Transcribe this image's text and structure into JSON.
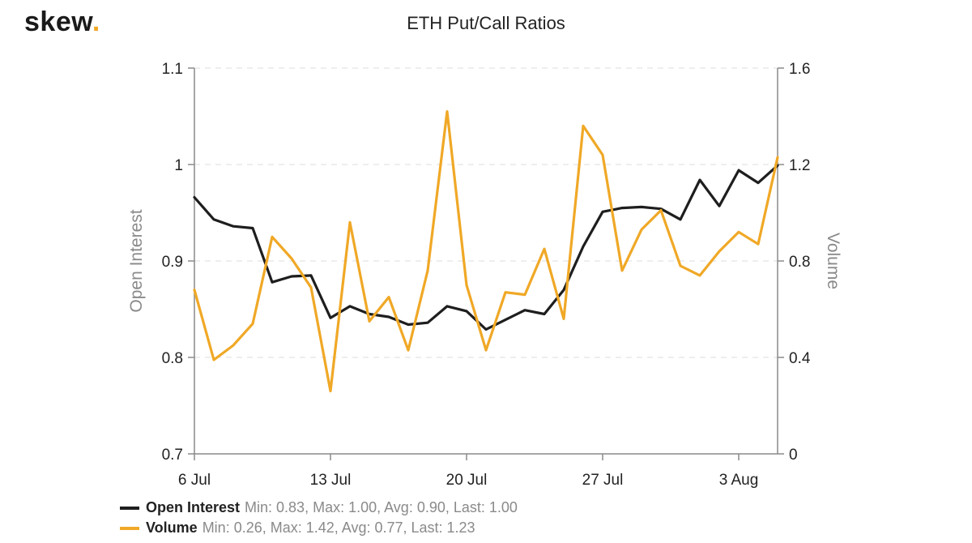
{
  "logo": {
    "text": "skew",
    "dot": "."
  },
  "chart_data": {
    "type": "line",
    "title": "ETH Put/Call Ratios",
    "x": [
      "2020-07-06",
      "2020-07-07",
      "2020-07-08",
      "2020-07-09",
      "2020-07-10",
      "2020-07-11",
      "2020-07-12",
      "2020-07-13",
      "2020-07-14",
      "2020-07-15",
      "2020-07-16",
      "2020-07-17",
      "2020-07-18",
      "2020-07-19",
      "2020-07-20",
      "2020-07-21",
      "2020-07-22",
      "2020-07-23",
      "2020-07-24",
      "2020-07-25",
      "2020-07-26",
      "2020-07-27",
      "2020-07-28",
      "2020-07-29",
      "2020-07-30",
      "2020-07-31",
      "2020-08-01",
      "2020-08-02",
      "2020-08-03",
      "2020-08-04",
      "2020-08-05"
    ],
    "xlim": [
      "2020-07-06",
      "2020-08-05"
    ],
    "xticks": [
      {
        "date": "2020-07-06",
        "label": "6 Jul"
      },
      {
        "date": "2020-07-13",
        "label": "13 Jul"
      },
      {
        "date": "2020-07-20",
        "label": "20 Jul"
      },
      {
        "date": "2020-07-27",
        "label": "27 Jul"
      },
      {
        "date": "2020-08-03",
        "label": "3 Aug"
      }
    ],
    "left_axis": {
      "label": "Open Interest",
      "range": [
        0.7,
        1.1
      ],
      "ticks": [
        {
          "value": 0.7,
          "label": "0.7"
        },
        {
          "value": 0.8,
          "label": "0.8"
        },
        {
          "value": 0.9,
          "label": "0.9"
        },
        {
          "value": 1.0,
          "label": "1"
        },
        {
          "value": 1.1,
          "label": "1.1"
        }
      ]
    },
    "right_axis": {
      "label": "Volume",
      "range": [
        0,
        1.6
      ],
      "ticks": [
        {
          "value": 0,
          "label": "0"
        },
        {
          "value": 0.4,
          "label": "0.4"
        },
        {
          "value": 0.8,
          "label": "0.8"
        },
        {
          "value": 1.2,
          "label": "1.2"
        },
        {
          "value": 1.6,
          "label": "1.6"
        }
      ]
    },
    "grid": "horizontal dashed",
    "legend_position": "bottom-left",
    "series": [
      {
        "name": "Open Interest",
        "axis": "left",
        "color": "#1e1e1e",
        "stats": "Min: 0.83, Max: 1.00, Avg: 0.90, Last: 1.00",
        "values": [
          0.966,
          0.943,
          0.936,
          0.934,
          0.878,
          0.884,
          0.885,
          0.841,
          0.853,
          0.845,
          0.842,
          0.834,
          0.836,
          0.853,
          0.848,
          0.829,
          0.839,
          0.849,
          0.845,
          0.87,
          0.915,
          0.951,
          0.955,
          0.956,
          0.954,
          0.943,
          0.984,
          0.957,
          0.994,
          0.981,
          0.999
        ]
      },
      {
        "name": "Volume",
        "axis": "right",
        "color": "#f0a826",
        "stats": "Min: 0.26, Max: 1.42, Avg: 0.77, Last: 1.23",
        "values": [
          0.68,
          0.39,
          0.45,
          0.54,
          0.9,
          0.81,
          0.69,
          0.26,
          0.96,
          0.55,
          0.65,
          0.43,
          0.76,
          1.42,
          0.7,
          0.43,
          0.67,
          0.66,
          0.85,
          0.56,
          1.36,
          1.24,
          0.76,
          0.93,
          1.01,
          0.78,
          0.74,
          0.84,
          0.92,
          0.87,
          1.23
        ]
      }
    ]
  }
}
